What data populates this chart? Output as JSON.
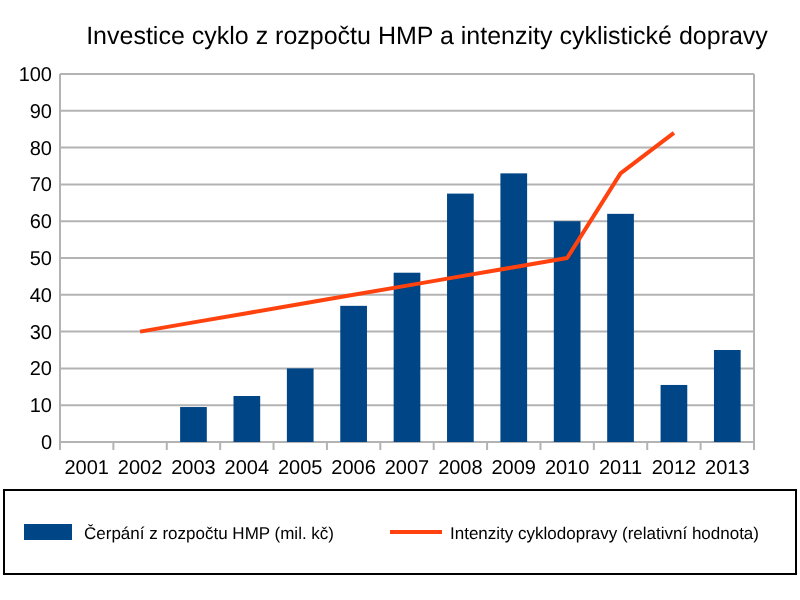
{
  "chart_data": {
    "type": "bar",
    "title": "Investice cyklo z rozpočtu HMP a intenzity cyklistické dopravy",
    "categories": [
      "2001",
      "2002",
      "2003",
      "2004",
      "2005",
      "2006",
      "2007",
      "2008",
      "2009",
      "2010",
      "2011",
      "2012",
      "2013"
    ],
    "series": [
      {
        "name": "Čerpání z rozpočtu HMP (mil. kč)",
        "color": "#004586",
        "values": [
          null,
          null,
          9.5,
          12.5,
          20,
          37,
          46,
          67.5,
          73,
          60,
          62,
          15.5,
          25
        ]
      },
      {
        "name": "Intenzity cyklodopravy (relativní hodnota)",
        "type": "line",
        "color": "#ff420e",
        "values": [
          null,
          30,
          32.5,
          35,
          37.5,
          40,
          42.5,
          45,
          47.5,
          50,
          73,
          84,
          null
        ]
      }
    ],
    "ylim": [
      0,
      100
    ],
    "yticks": [
      0,
      10,
      20,
      30,
      40,
      50,
      60,
      70,
      80,
      90,
      100
    ],
    "grid": "y",
    "legend": "bottom"
  }
}
